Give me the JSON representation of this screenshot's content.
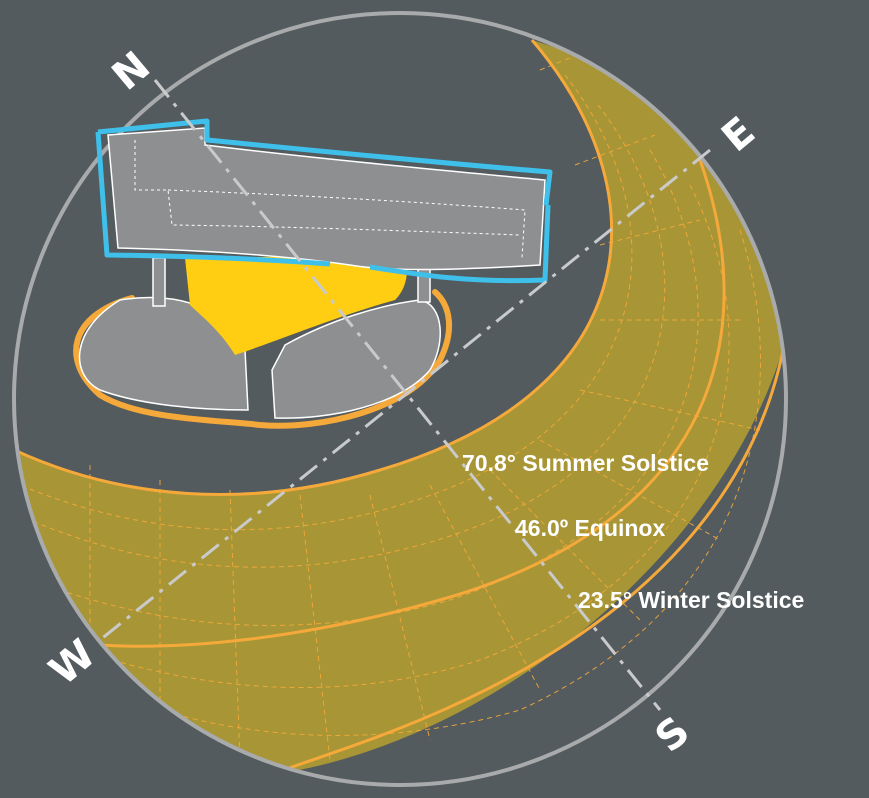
{
  "colors": {
    "background": "#535b5f",
    "sun_band": "#a89535",
    "sun_path": "#f5a93a",
    "horizon_circle": "#a8aaab",
    "building_fill": "#8e8f91",
    "roof_outline": "#3fc0ea",
    "courtyard": "#ffcd12",
    "podium_outline": "#f5a93a",
    "axis_line": "#c9cacb"
  },
  "compass": {
    "north": "N",
    "east": "E",
    "south": "S",
    "west": "W"
  },
  "sun_paths": [
    {
      "altitude": "70.8°",
      "name": "Summer Solstice",
      "label": "70.8° Summer Solstice"
    },
    {
      "altitude": "46.0º",
      "name": "Equinox",
      "label": "46.0º Equinox"
    },
    {
      "altitude": "23.5°",
      "name": "Winter Solstice",
      "label": "23.5° Winter Solstice"
    }
  ]
}
